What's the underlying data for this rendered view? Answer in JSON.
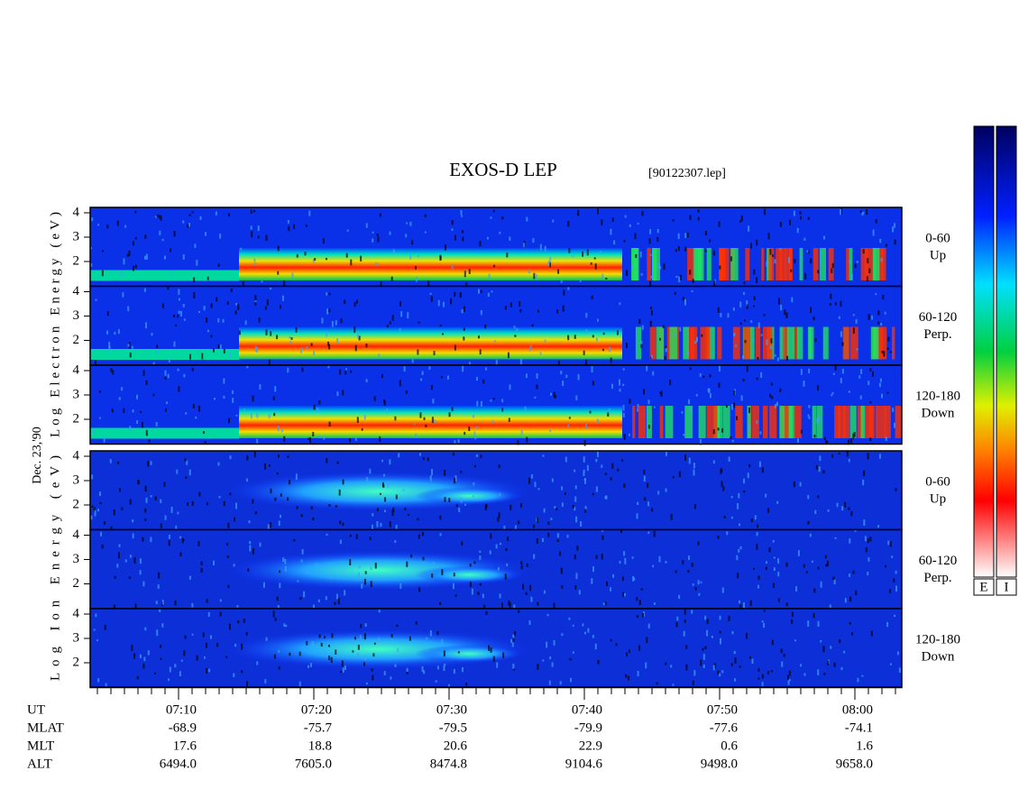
{
  "header": {
    "title": "EXOS-D LEP",
    "file": "[90122307.lep]"
  },
  "date": "Dec. 23,'90",
  "electron": {
    "axis_label": "Log  Electron  Energy (eV)",
    "panels": [
      {
        "yticks": [
          "4",
          "3",
          "2"
        ],
        "channel": "0-60",
        "direction": "Up"
      },
      {
        "yticks": [
          "4",
          "3",
          "2"
        ],
        "channel": "60-120",
        "direction": "Perp."
      },
      {
        "yticks": [
          "4",
          "3",
          "2"
        ],
        "channel": "120-180",
        "direction": "Down"
      }
    ]
  },
  "ion": {
    "axis_label": "Log   Ion   Energy (eV)",
    "panels": [
      {
        "yticks": [
          "4",
          "3",
          "2"
        ],
        "channel": "0-60",
        "direction": "Up"
      },
      {
        "yticks": [
          "4",
          "3",
          "2"
        ],
        "channel": "60-120",
        "direction": "Perp."
      },
      {
        "yticks": [
          "4",
          "3",
          "2"
        ],
        "channel": "120-180",
        "direction": "Down"
      }
    ]
  },
  "ephemeris": {
    "labels": [
      "UT",
      "MLAT",
      "MLT",
      "ALT"
    ],
    "columns": [
      [
        "07:10",
        "-68.9",
        "17.6",
        "6494.0"
      ],
      [
        "07:20",
        "-75.7",
        "18.8",
        "7605.0"
      ],
      [
        "07:30",
        "-79.5",
        "20.6",
        "8474.8"
      ],
      [
        "07:40",
        "-79.9",
        "22.9",
        "9104.6"
      ],
      [
        "07:50",
        "-77.6",
        "0.6",
        "9498.0"
      ],
      [
        "08:00",
        "-74.1",
        "1.6",
        "9658.0"
      ]
    ]
  },
  "colorbar_labels": [
    "E",
    "I"
  ]
}
